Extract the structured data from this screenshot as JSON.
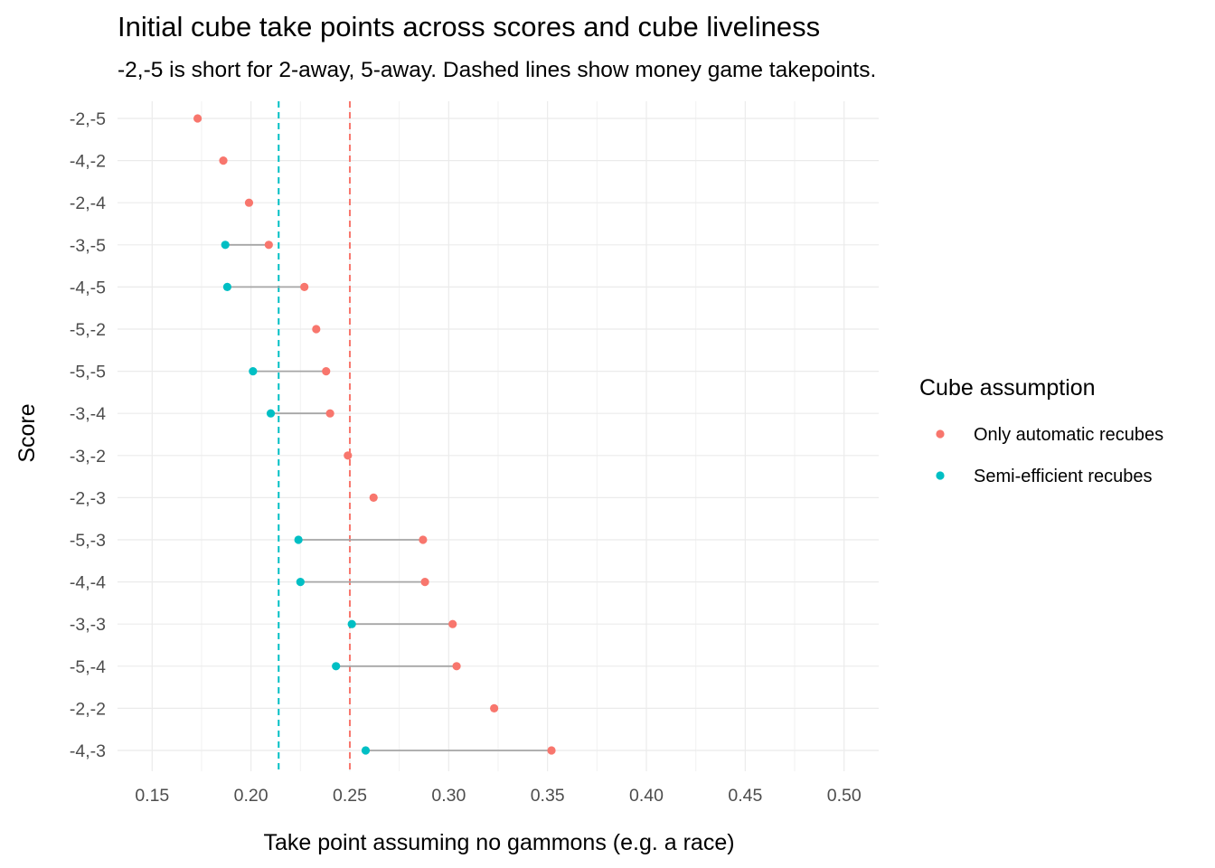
{
  "chart_data": {
    "type": "dumbbell",
    "title": "Initial cube take points across scores and cube liveliness",
    "subtitle": "-2,-5 is short for 2-away, 5-away. Dashed lines show money game takepoints.",
    "xlabel": "Take point assuming no gammons (e.g. a race)",
    "ylabel": "Score",
    "xlim": [
      0.15,
      0.5
    ],
    "xticks": [
      "0.15",
      "0.20",
      "0.25",
      "0.30",
      "0.35",
      "0.40",
      "0.45",
      "0.50"
    ],
    "grid": true,
    "legend": {
      "title": "Cube assumption",
      "position": "right",
      "entries": [
        {
          "label": "Only automatic recubes",
          "color": "#F8766D"
        },
        {
          "label": "Semi-efficient recubes",
          "color": "#00BFC4"
        }
      ]
    },
    "categories": [
      "-2,-5",
      "-4,-2",
      "-2,-4",
      "-3,-5",
      "-4,-5",
      "-5,-2",
      "-5,-5",
      "-3,-4",
      "-3,-2",
      "-2,-3",
      "-5,-3",
      "-4,-4",
      "-3,-3",
      "-5,-4",
      "-2,-2",
      "-4,-3"
    ],
    "series": [
      {
        "name": "Only automatic recubes",
        "color": "#F8766D",
        "values": [
          0.173,
          0.186,
          0.199,
          0.209,
          0.227,
          0.233,
          0.238,
          0.24,
          0.249,
          0.262,
          0.287,
          0.288,
          0.302,
          0.304,
          0.323,
          0.352
        ]
      },
      {
        "name": "Semi-efficient recubes",
        "color": "#00BFC4",
        "values": [
          null,
          null,
          null,
          0.187,
          0.188,
          null,
          0.201,
          0.21,
          null,
          null,
          0.224,
          0.225,
          0.251,
          0.243,
          null,
          0.258
        ]
      }
    ],
    "reference_lines": [
      {
        "x": 0.214,
        "color": "#00BFC4",
        "style": "dashed"
      },
      {
        "x": 0.25,
        "color": "#F8766D",
        "style": "dashed"
      }
    ]
  }
}
